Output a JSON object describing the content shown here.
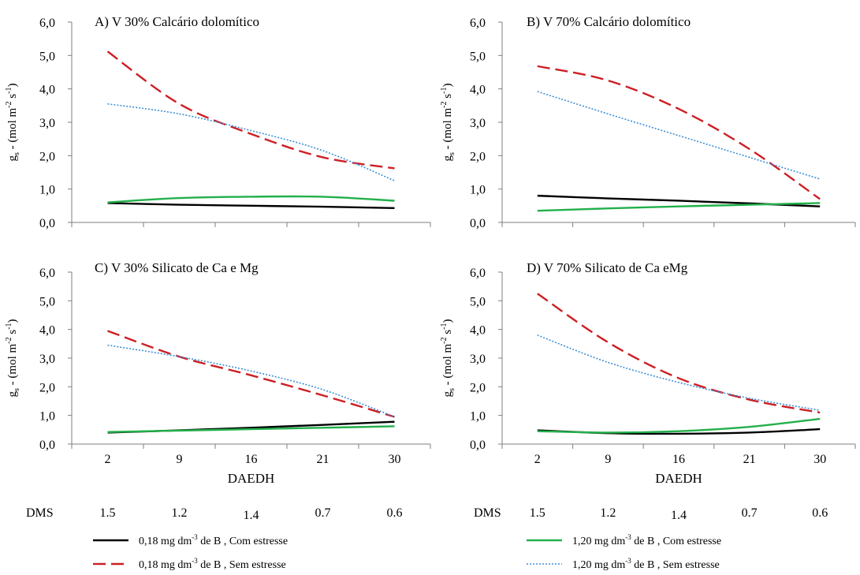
{
  "colors": {
    "com_018": "#000000",
    "sem_018": "#cc1f24",
    "com_120": "#22b04b",
    "sem_120": "#3d8fd6",
    "axis": "#7f7f7f"
  },
  "y_label": {
    "g": "g",
    "s": "s",
    "rest": " - (mol  m",
    "exp_m": "-2",
    "s2": " s",
    "exp_s": "-1",
    "close": ")"
  },
  "x_label": "DAEDH",
  "dms": {
    "label": "DMS",
    "values": [
      "1.5",
      "1.2",
      "1.4",
      "0.7",
      "0.6"
    ]
  },
  "legend": [
    {
      "key": "com_018",
      "pre": "0,18  mg  dm",
      "exp": "-3",
      "post": " de B , Com estresse",
      "style": "solid"
    },
    {
      "key": "sem_018",
      "pre": "0,18  mg  dm",
      "exp": "-3",
      "post": " de B , Sem estresse",
      "style": "dashed"
    },
    {
      "key": "com_120",
      "pre": "1,20  mg  dm",
      "exp": "-3",
      "post": " de B , Com estresse",
      "style": "solid"
    },
    {
      "key": "sem_120",
      "pre": "1,20  mg  dm",
      "exp": "-3",
      "post": " de B , Sem estresse",
      "style": "dotted"
    }
  ],
  "chart_data": [
    {
      "type": "line",
      "title": "A) V 30% Calcário dolomítico",
      "categories": [
        "2",
        "9",
        "16",
        "21",
        "30"
      ],
      "yticks": [
        "0,0",
        "1,0",
        "2,0",
        "3,0",
        "4,0",
        "5,0",
        "6,0"
      ],
      "ylim": [
        0,
        6
      ],
      "series": [
        {
          "key": "com_018",
          "values": [
            0.58,
            0.53,
            0.5,
            0.47,
            0.43
          ]
        },
        {
          "key": "sem_018",
          "values": [
            5.12,
            3.55,
            2.65,
            1.95,
            1.62
          ]
        },
        {
          "key": "com_120",
          "values": [
            0.6,
            0.73,
            0.77,
            0.77,
            0.65
          ]
        },
        {
          "key": "sem_120",
          "values": [
            3.55,
            3.25,
            2.75,
            2.15,
            1.25
          ]
        }
      ]
    },
    {
      "type": "line",
      "title": "B) V  70% Calcário dolomítico",
      "categories": [
        "2",
        "9",
        "16",
        "21",
        "30"
      ],
      "yticks": [
        "0,0",
        "1,0",
        "2,0",
        "3,0",
        "4,0",
        "5,0",
        "6,0"
      ],
      "ylim": [
        0,
        6
      ],
      "series": [
        {
          "key": "com_018",
          "values": [
            0.8,
            0.72,
            0.65,
            0.57,
            0.48
          ]
        },
        {
          "key": "sem_018",
          "values": [
            4.68,
            4.25,
            3.4,
            2.2,
            0.7
          ]
        },
        {
          "key": "com_120",
          "values": [
            0.35,
            0.42,
            0.48,
            0.53,
            0.58
          ]
        },
        {
          "key": "sem_120",
          "values": [
            3.92,
            3.25,
            2.6,
            1.95,
            1.3
          ]
        }
      ]
    },
    {
      "type": "line",
      "title": "C) V 30% Silicato de Ca e Mg",
      "categories": [
        "2",
        "9",
        "16",
        "21",
        "30"
      ],
      "yticks": [
        "0,0",
        "1,0",
        "2,0",
        "3,0",
        "4,0",
        "5,0",
        "6,0"
      ],
      "ylim": [
        0,
        6
      ],
      "series": [
        {
          "key": "com_018",
          "values": [
            0.4,
            0.48,
            0.57,
            0.67,
            0.78
          ]
        },
        {
          "key": "sem_018",
          "values": [
            3.95,
            3.05,
            2.4,
            1.7,
            0.95
          ]
        },
        {
          "key": "com_120",
          "values": [
            0.42,
            0.47,
            0.52,
            0.57,
            0.62
          ]
        },
        {
          "key": "sem_120",
          "values": [
            3.45,
            3.05,
            2.55,
            1.9,
            0.95
          ]
        }
      ]
    },
    {
      "type": "line",
      "title": "D) V  70% Silicato de Ca eMg",
      "categories": [
        "2",
        "9",
        "16",
        "21",
        "30"
      ],
      "yticks": [
        "0,0",
        "1,0",
        "2,0",
        "3,0",
        "4,0",
        "5,0",
        "6,0"
      ],
      "ylim": [
        0,
        6
      ],
      "series": [
        {
          "key": "com_018",
          "values": [
            0.48,
            0.38,
            0.36,
            0.4,
            0.52
          ]
        },
        {
          "key": "sem_018",
          "values": [
            5.25,
            3.55,
            2.3,
            1.55,
            1.1
          ]
        },
        {
          "key": "com_120",
          "values": [
            0.45,
            0.4,
            0.45,
            0.6,
            0.88
          ]
        },
        {
          "key": "sem_120",
          "values": [
            3.8,
            2.85,
            2.15,
            1.6,
            1.18
          ]
        }
      ]
    }
  ]
}
